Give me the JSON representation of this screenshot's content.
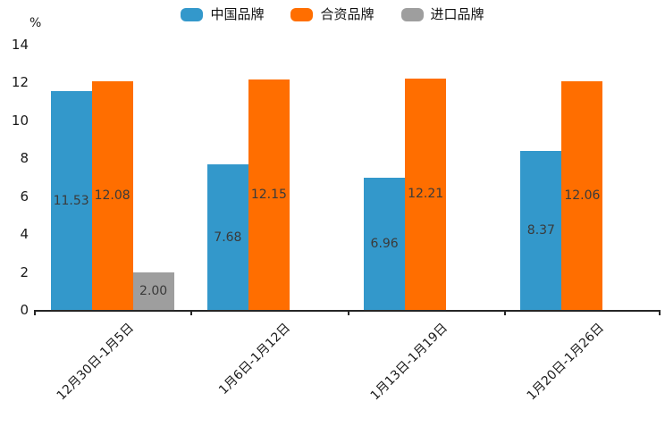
{
  "chart_data": {
    "type": "bar",
    "title": "",
    "ylabel": "%",
    "xlabel": "",
    "categories": [
      "12月30日-1月5日",
      "1月6日-1月12日",
      "1月13日-1月19日",
      "1月20日-1月26日"
    ],
    "series": [
      {
        "name": "中国品牌",
        "color": "#3398CB",
        "values": [
          11.53,
          7.68,
          6.96,
          8.37
        ]
      },
      {
        "name": "合资品牌",
        "color": "#FF6E00",
        "values": [
          12.08,
          12.15,
          12.21,
          12.06
        ]
      },
      {
        "name": "进口品牌",
        "color": "#9E9E9E",
        "values": [
          2.0,
          null,
          null,
          null
        ]
      }
    ],
    "ylim": [
      0,
      14
    ],
    "yticks": [
      0,
      2,
      4,
      6,
      8,
      10,
      12,
      14
    ],
    "grid": false,
    "legend_position": "top-center",
    "value_label_decimals": 2,
    "axis_color": "#262626",
    "label_color": "#3a3a3a"
  }
}
